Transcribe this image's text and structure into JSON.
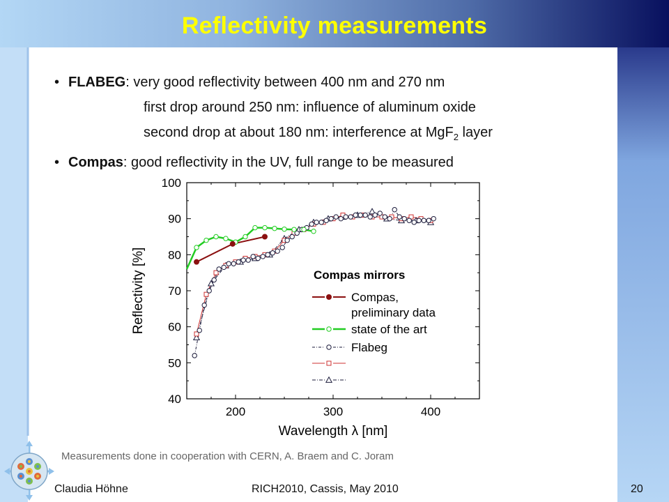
{
  "slide": {
    "title": "Reflectivity measurements",
    "bullet1": {
      "strong": "FLABEG",
      "rest": ": very good reflectivity between 400 nm and 270 nm"
    },
    "bullet1_line2": "first drop around 250 nm: influence of aluminum oxide",
    "bullet1_line3": {
      "text": "second drop at about 180 nm: interference at MgF",
      "sub": "2",
      "tail": " layer"
    },
    "bullet2": {
      "strong": "Compas",
      "rest": ": good reflectivity in the UV, full range to be measured"
    },
    "note": "Measurements done in cooperation with CERN, A. Braem and C. Joram",
    "footer": {
      "author": "Claudia Höhne",
      "conference": "RICH2010, Cassis, May 2010",
      "page": "20"
    }
  },
  "colors": {
    "title": "#ffff00",
    "compas": "#8b1010",
    "state_of_art": "#22cc22",
    "flabeg": "#1a1a3a",
    "red_squares": "#cc3030",
    "triangles": "#1a1a3a"
  },
  "chart_data": {
    "type": "scatter",
    "xlabel": "Wavelength λ [nm]",
    "ylabel": "Reflectivity [%]",
    "xlim": [
      150,
      450
    ],
    "ylim": [
      40,
      100
    ],
    "xticks": [
      200,
      300,
      400
    ],
    "yticks": [
      40,
      50,
      60,
      70,
      80,
      90,
      100
    ],
    "legend_title": "Compas mirrors",
    "legend_position": "inside-right",
    "series": [
      {
        "name": "Compas, preliminary data",
        "legend_lines": [
          "Compas,",
          "preliminary data"
        ],
        "x": [
          160,
          197,
          230
        ],
        "y": [
          78,
          83,
          85
        ]
      },
      {
        "name": "state of the art",
        "x": [
          150,
          160,
          170,
          180,
          190,
          200,
          210,
          220,
          230,
          240,
          250,
          260,
          270,
          280
        ],
        "y": [
          76,
          82,
          84,
          85,
          84.5,
          83.5,
          85,
          87.5,
          87.5,
          87.3,
          87.1,
          87,
          87,
          86.5
        ]
      },
      {
        "name": "Flabeg",
        "x": [
          158,
          163,
          168,
          173,
          178,
          183,
          188,
          193,
          198,
          203,
          208,
          213,
          218,
          223,
          228,
          233,
          238,
          243,
          248,
          253,
          258,
          263,
          268,
          273,
          278,
          283,
          288,
          293,
          298,
          303,
          308,
          313,
          318,
          323,
          328,
          333,
          338,
          343,
          348,
          353,
          358,
          363,
          368,
          373,
          378,
          383,
          388,
          393,
          398,
          403
        ],
        "y": [
          52,
          59,
          66,
          70,
          73,
          76,
          76.5,
          77.5,
          77.5,
          78,
          78.5,
          78.5,
          79.5,
          79,
          79.5,
          80,
          80.5,
          81,
          82,
          84,
          85,
          86,
          87,
          87.5,
          88.5,
          89,
          89,
          89.5,
          90,
          90.5,
          90,
          90.5,
          90.5,
          91,
          91,
          91,
          90.5,
          91,
          91.5,
          90.5,
          90,
          92.5,
          90.5,
          90,
          89.5,
          89,
          89.5,
          89.5,
          89.5,
          90
        ]
      },
      {
        "name": "",
        "x": [
          160,
          170,
          180,
          190,
          200,
          210,
          220,
          230,
          240,
          250,
          260,
          270,
          280,
          290,
          300,
          310,
          320,
          330,
          340,
          350,
          360,
          370,
          380,
          390,
          400
        ],
        "y": [
          58,
          69,
          75,
          77,
          78,
          79,
          79.5,
          80,
          81,
          84,
          86,
          87,
          88.5,
          89,
          90,
          91,
          90.5,
          91,
          90.5,
          90.5,
          90.5,
          90,
          90.5,
          90,
          89.5
        ]
      },
      {
        "name": "",
        "x": [
          160,
          175,
          190,
          205,
          220,
          235,
          250,
          265,
          280,
          295,
          310,
          325,
          340,
          355,
          370,
          385,
          400
        ],
        "y": [
          57,
          72,
          77,
          78,
          79,
          80,
          84.5,
          87,
          89,
          90,
          90.5,
          91,
          92,
          90,
          89.5,
          89.5,
          89
        ]
      }
    ]
  }
}
